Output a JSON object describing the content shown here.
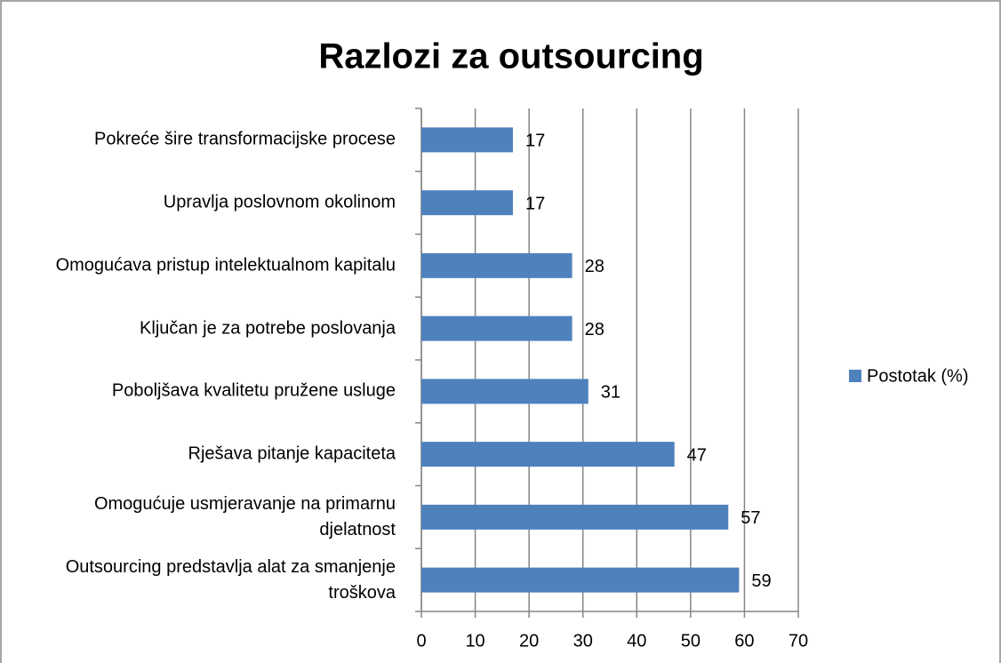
{
  "chart_data": {
    "type": "bar",
    "orientation": "horizontal",
    "title": "Razlozi za outsourcing",
    "categories": [
      "Pokreće šire transformacijske procese",
      "Upravlja poslovnom okolinom",
      "Omogućava pristup intelektualnom kapitalu",
      "Ključan je za potrebe poslovanja",
      "Poboljšava kvalitetu pružene usluge",
      "Rješava pitanje kapaciteta",
      "Omogućuje usmjeravanje na primarnu djelatnost",
      "Outsourcing predstavlja alat za smanjenje troškova"
    ],
    "series": [
      {
        "name": "Postotak (%)",
        "color": "#4f81bd",
        "values": [
          17,
          17,
          28,
          28,
          31,
          47,
          57,
          59
        ]
      }
    ],
    "xlim": [
      0,
      70
    ],
    "xticks": [
      0,
      10,
      20,
      30,
      40,
      50,
      60,
      70
    ],
    "grid": true,
    "legend": "right"
  }
}
